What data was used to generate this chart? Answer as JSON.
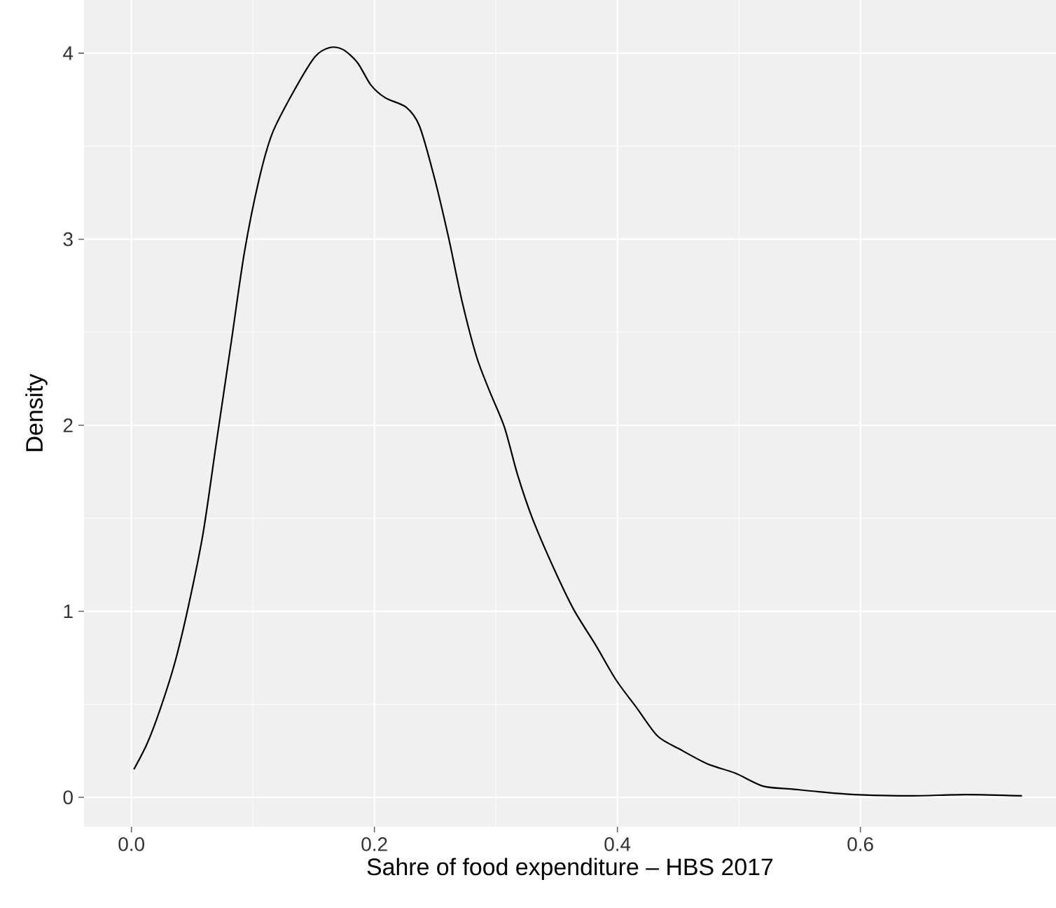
{
  "chart_data": {
    "type": "line",
    "xlabel": "Sahre of food expenditure – HBS 2017",
    "ylabel": "Density",
    "x": [
      0.002,
      0.013,
      0.024,
      0.036,
      0.047,
      0.059,
      0.07,
      0.082,
      0.093,
      0.105,
      0.116,
      0.134,
      0.151,
      0.163,
      0.174,
      0.186,
      0.197,
      0.209,
      0.226,
      0.237,
      0.249,
      0.261,
      0.272,
      0.284,
      0.295,
      0.307,
      0.318,
      0.33,
      0.347,
      0.364,
      0.382,
      0.399,
      0.416,
      0.433,
      0.451,
      0.474,
      0.497,
      0.52,
      0.543,
      0.566,
      0.595,
      0.641,
      0.687,
      0.733
    ],
    "series": [
      {
        "color": "#000000",
        "values": [
          0.15,
          0.29,
          0.48,
          0.73,
          1.03,
          1.42,
          1.91,
          2.44,
          2.93,
          3.32,
          3.57,
          3.8,
          3.98,
          4.03,
          4.02,
          3.95,
          3.83,
          3.76,
          3.71,
          3.61,
          3.34,
          3.01,
          2.67,
          2.37,
          2.18,
          1.99,
          1.73,
          1.5,
          1.24,
          1.01,
          0.82,
          0.63,
          0.48,
          0.33,
          0.26,
          0.18,
          0.13,
          0.06,
          0.045,
          0.03,
          0.015,
          0.008,
          0.015,
          0.008
        ]
      }
    ],
    "xlim": [
      -0.039,
      0.761
    ],
    "ylim": [
      -0.158,
      4.286
    ],
    "xticks": [
      {
        "value": 0,
        "label": "0.0"
      },
      {
        "value": 0.2,
        "label": "0.2"
      },
      {
        "value": 0.4,
        "label": "0.4"
      },
      {
        "value": 0.6,
        "label": "0.6"
      }
    ],
    "yticks": [
      0,
      1,
      2,
      3,
      4
    ],
    "grid": true,
    "marker": "none",
    "line_style": "solid"
  }
}
